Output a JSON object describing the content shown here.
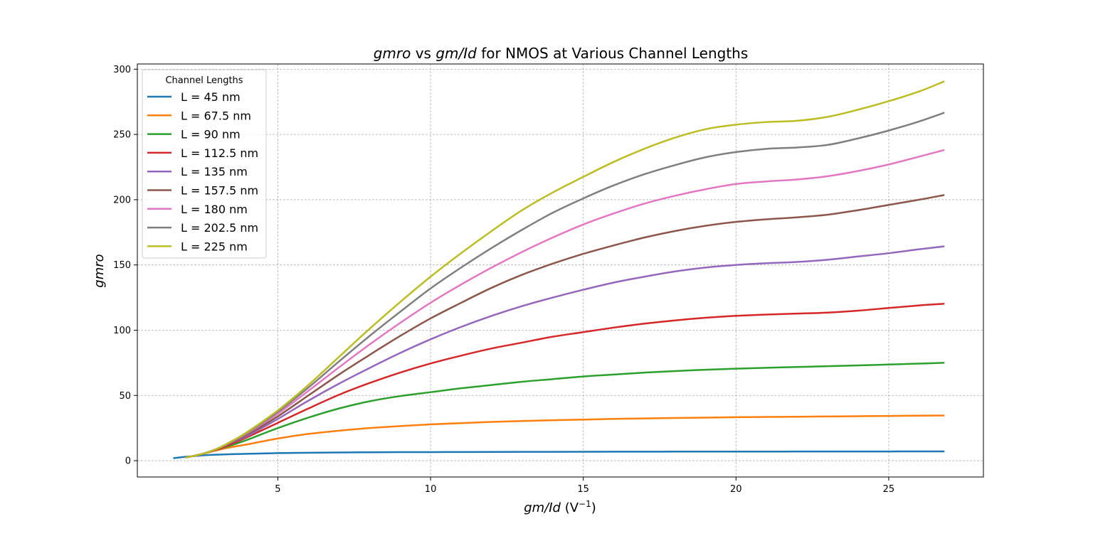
{
  "chart_data": {
    "type": "line",
    "title_parts": [
      "gmro",
      " vs ",
      "gm/Id",
      " for NMOS at Various Channel Lengths"
    ],
    "xlabel_parts": [
      "gm/Id",
      " (V",
      "−1",
      ")"
    ],
    "ylabel": "gmro",
    "xlim": [
      0.4,
      28.1
    ],
    "ylim": [
      -12.5,
      304
    ],
    "xticks": [
      5,
      10,
      15,
      20,
      25
    ],
    "yticks": [
      0,
      50,
      100,
      150,
      200,
      250,
      300
    ],
    "grid": true,
    "legend": {
      "title": "Channel Lengths",
      "placement": "top-left"
    },
    "x": [
      1.6,
      2,
      2.5,
      3,
      3.5,
      4,
      5,
      6,
      7,
      8,
      9,
      10,
      11,
      12,
      13,
      14,
      15,
      16,
      17,
      18,
      19,
      20,
      21,
      22,
      23,
      24,
      25,
      26,
      26.8
    ],
    "series": [
      {
        "name": "L = 45 nm",
        "color": "#1f77b4",
        "x": [
          1.6,
          2,
          2.5,
          3,
          3.5,
          4,
          5,
          6,
          7,
          8,
          9,
          10,
          11,
          12,
          13,
          14,
          15,
          16,
          17,
          18,
          19,
          20,
          21,
          22,
          23,
          24,
          25,
          26,
          26.8
        ],
        "values": [
          2,
          3,
          4,
          4.6,
          5,
          5.3,
          5.8,
          6.1,
          6.3,
          6.45,
          6.55,
          6.6,
          6.65,
          6.7,
          6.75,
          6.8,
          6.85,
          6.9,
          6.92,
          6.95,
          6.97,
          7,
          7,
          7.02,
          7.05,
          7.05,
          7.07,
          7.1,
          7.1
        ]
      },
      {
        "name": "L = 67.5 nm",
        "color": "#ff7f0e",
        "x": [
          2,
          2.5,
          3,
          3.5,
          4,
          5,
          6,
          7,
          8,
          9,
          10,
          11,
          12,
          13,
          14,
          15,
          16,
          17,
          18,
          19,
          20,
          21,
          22,
          23,
          24,
          25,
          26,
          26.8
        ],
        "values": [
          2.5,
          5,
          8,
          10.5,
          12.5,
          17,
          20.5,
          23,
          25,
          26.5,
          27.8,
          28.8,
          29.7,
          30.4,
          31,
          31.5,
          32,
          32.4,
          32.7,
          33,
          33.3,
          33.5,
          33.7,
          33.9,
          34.1,
          34.3,
          34.5,
          34.6
        ]
      },
      {
        "name": "L = 90 nm",
        "color": "#2ca02c",
        "x": [
          2,
          2.5,
          3,
          3.5,
          4,
          5,
          6,
          7,
          8,
          9,
          10,
          11,
          12,
          13,
          14,
          15,
          16,
          17,
          18,
          19,
          20,
          21,
          22,
          23,
          24,
          25,
          26,
          26.8
        ],
        "values": [
          2.5,
          5,
          8.5,
          12,
          16,
          25,
          33,
          40,
          45.5,
          49.5,
          52.5,
          55.5,
          58,
          60.5,
          62.5,
          64.5,
          66,
          67.5,
          68.7,
          69.7,
          70.5,
          71.2,
          71.8,
          72.4,
          73,
          73.7,
          74.4,
          75
        ]
      },
      {
        "name": "L = 112.5 nm",
        "color": "#d62728",
        "x": [
          2,
          2.5,
          3,
          3.5,
          4,
          5,
          6,
          7,
          8,
          9,
          10,
          11,
          12,
          13,
          14,
          15,
          16,
          17,
          18,
          19,
          20,
          21,
          22,
          23,
          24,
          25,
          26,
          26.8
        ],
        "values": [
          2.5,
          5,
          8.5,
          13,
          18,
          29,
          40,
          50.5,
          59.5,
          67.5,
          74.5,
          80.5,
          86,
          90.5,
          95,
          98.5,
          102,
          105,
          107.5,
          109.5,
          111,
          112,
          112.7,
          113.5,
          115,
          117,
          119,
          120.2
        ]
      },
      {
        "name": "L = 135 nm",
        "color": "#9467bd",
        "x": [
          2,
          2.5,
          3,
          3.5,
          4,
          5,
          6,
          7,
          8,
          9,
          10,
          11,
          12,
          13,
          14,
          15,
          16,
          17,
          18,
          19,
          20,
          21,
          22,
          23,
          24,
          25,
          26,
          26.8
        ],
        "values": [
          2.5,
          5,
          9,
          14,
          19,
          32,
          46,
          59,
          71,
          82.5,
          93,
          102.5,
          111,
          118.5,
          125,
          131,
          136.5,
          141,
          145,
          148,
          150,
          151.3,
          152.3,
          154,
          156.5,
          159,
          162,
          164.2
        ]
      },
      {
        "name": "L = 157.5 nm",
        "color": "#8c564b",
        "x": [
          2,
          2.5,
          3,
          3.5,
          4,
          5,
          6,
          7,
          8,
          9,
          10,
          11,
          12,
          13,
          14,
          15,
          16,
          17,
          18,
          19,
          20,
          21,
          22,
          23,
          24,
          25,
          26,
          26.8
        ],
        "values": [
          2.5,
          5,
          9,
          14.5,
          20,
          34,
          50,
          66,
          81,
          95.5,
          109,
          121,
          132.5,
          142.5,
          151,
          158.5,
          165,
          171,
          176,
          180,
          183,
          185,
          186.5,
          188.5,
          192,
          196,
          200,
          203.5
        ]
      },
      {
        "name": "L = 180 nm",
        "color": "#e377c2",
        "x": [
          2,
          2.5,
          3,
          3.5,
          4,
          5,
          6,
          7,
          8,
          9,
          10,
          11,
          12,
          13,
          14,
          15,
          16,
          17,
          18,
          19,
          20,
          21,
          22,
          23,
          24,
          25,
          26,
          26.8
        ],
        "values": [
          2.5,
          5,
          9,
          15,
          21,
          36,
          53.5,
          71.5,
          89,
          105.5,
          121,
          135,
          148,
          160,
          171,
          181,
          189.5,
          197,
          203,
          208,
          212,
          214,
          215.5,
          218,
          222,
          227,
          233,
          238
        ]
      },
      {
        "name": "L = 202.5 nm",
        "color": "#7f7f7f",
        "x": [
          2,
          2.5,
          3,
          3.5,
          4,
          5,
          6,
          7,
          8,
          9,
          10,
          11,
          12,
          13,
          14,
          15,
          16,
          17,
          18,
          19,
          20,
          21,
          22,
          23,
          24,
          25,
          26,
          26.8
        ],
        "values": [
          2.5,
          5,
          9,
          15,
          21.5,
          37.5,
          56,
          76,
          95.5,
          114,
          132,
          148,
          163,
          177,
          190,
          201,
          211,
          219.5,
          226.5,
          232.5,
          236.5,
          239,
          240,
          242,
          247,
          253,
          260,
          266.5
        ]
      },
      {
        "name": "L = 225 nm",
        "color": "#bcbd22",
        "x": [
          2,
          2.5,
          3,
          3.5,
          4,
          5,
          6,
          7,
          8,
          9,
          10,
          11,
          12,
          13,
          14,
          15,
          16,
          17,
          18,
          19,
          20,
          21,
          22,
          23,
          24,
          25,
          26,
          26.8
        ],
        "values": [
          2.5,
          5,
          9,
          15,
          22,
          38.5,
          58,
          79.5,
          101,
          121.5,
          141,
          159,
          176,
          192,
          205.5,
          217.5,
          229,
          239,
          247.5,
          254,
          257.5,
          259.5,
          260.5,
          263.5,
          269,
          275.5,
          283,
          290.5
        ]
      }
    ]
  }
}
